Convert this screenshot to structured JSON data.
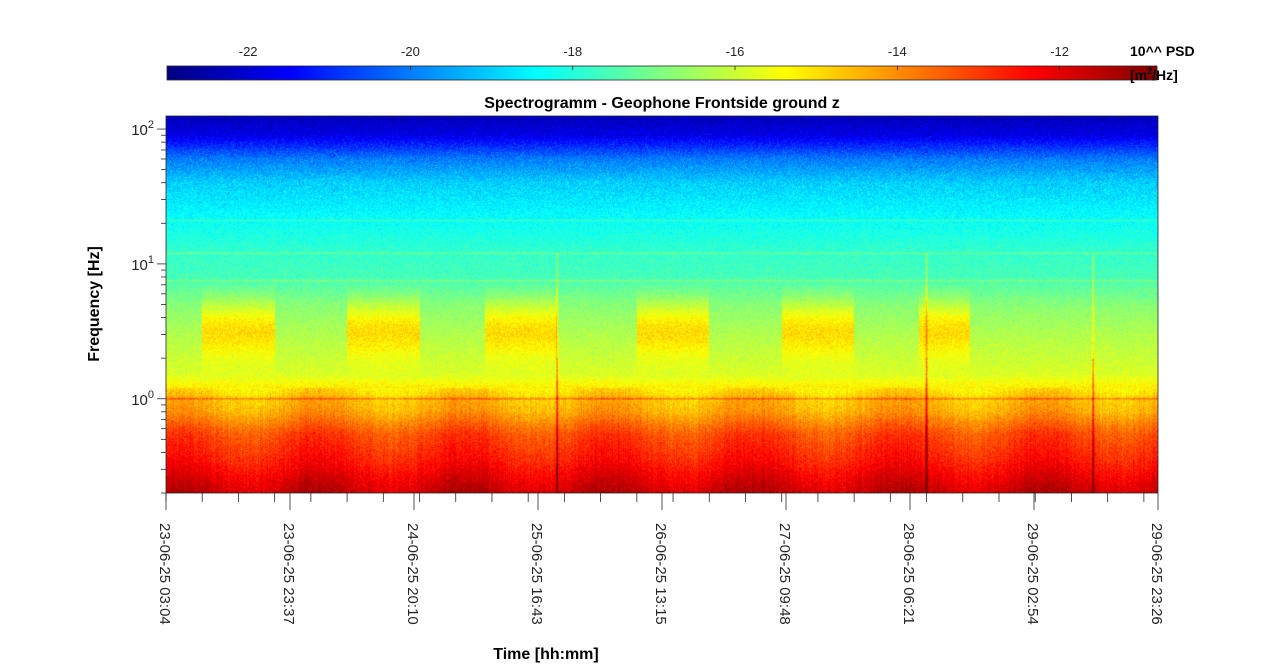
{
  "chart_data": {
    "type": "heatmap",
    "title": "Spectrogramm - Geophone Frontside ground z",
    "xlabel": "Time [hh:mm]",
    "ylabel": "Frequency [Hz]",
    "colorbar": {
      "title": "10^^ PSD",
      "unit_prefix": "[m",
      "unit_superscript": "2",
      "unit_suffix": "/Hz]",
      "range": [
        -23,
        -10.8
      ],
      "tick_values": [
        -22,
        -20,
        -18,
        -16,
        -14,
        -12
      ],
      "tick_labels": [
        "-22",
        "-20",
        "-18",
        "-16",
        "-14",
        "-12"
      ],
      "colormap": "jet",
      "location": "top"
    },
    "x_tick_labels": [
      "23-06-25 03:04",
      "23-06-25 23:37",
      "24-06-25 20:10",
      "25-06-25 16:43",
      "26-06-25 13:15",
      "27-06-25 09:48",
      "28-06-25 06:21",
      "29-06-25 02:54",
      "29-06-25 23:26"
    ],
    "x_range_days": [
      0,
      6.8475
    ],
    "y_scale": "log",
    "y_range": [
      0.2,
      125
    ],
    "y_ticks": [
      {
        "base": "10",
        "exp": "0",
        "value": 1
      },
      {
        "base": "10",
        "exp": "1",
        "value": 10
      },
      {
        "base": "10",
        "exp": "2",
        "value": 100
      }
    ],
    "grid": false,
    "features": {
      "psd_profile_log": [
        {
          "f": 0.2,
          "psd": -11.6
        },
        {
          "f": 0.35,
          "psd": -12.6
        },
        {
          "f": 0.55,
          "psd": -13.2
        },
        {
          "f": 0.8,
          "psd": -14.3
        },
        {
          "f": 1.0,
          "psd": -14.6
        },
        {
          "f": 1.5,
          "psd": -15.8
        },
        {
          "f": 3.0,
          "psd": -16.3
        },
        {
          "f": 5.0,
          "psd": -16.8
        },
        {
          "f": 8.0,
          "psd": -17.6
        },
        {
          "f": 12.0,
          "psd": -17.8
        },
        {
          "f": 20.0,
          "psd": -18.3
        },
        {
          "f": 40.0,
          "psd": -19.0
        },
        {
          "f": 60.0,
          "psd": -20.0
        },
        {
          "f": 90.0,
          "psd": -21.8
        },
        {
          "f": 125.0,
          "psd": -22.3
        }
      ],
      "narrow_bands_hz": [
        1.0,
        12.0,
        21.0,
        7.5
      ],
      "daytime_activity_days": [
        {
          "start": 0.25,
          "end": 0.75
        },
        {
          "start": 1.25,
          "end": 1.75
        },
        {
          "start": 2.2,
          "end": 2.7
        },
        {
          "start": 3.25,
          "end": 3.75
        },
        {
          "start": 4.25,
          "end": 4.75
        },
        {
          "start": 5.2,
          "end": 5.55
        }
      ],
      "transients_days": [
        2.7,
        5.25,
        6.4
      ]
    }
  }
}
